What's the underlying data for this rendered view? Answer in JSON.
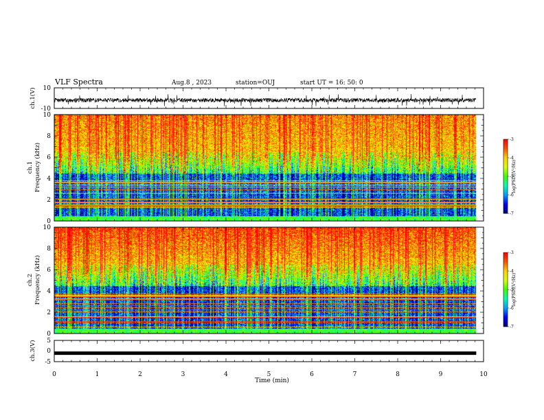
{
  "header": {
    "title": "VLF Spectra",
    "date": "Aug.8 , 2023",
    "station": "station=OUJ",
    "start": "start UT = 16: 50: 0"
  },
  "colors": {
    "colormap": [
      "#00007a",
      "#0000ff",
      "#00a0ff",
      "#00ffb0",
      "#40ff00",
      "#d8ff00",
      "#ffd000",
      "#ff5000",
      "#ff0000",
      "#ffffff"
    ],
    "waveform": "#000000"
  },
  "chart_data": [
    {
      "name": "ch1-waveform",
      "type": "line",
      "ylabel": "ch.1(V)",
      "ylim": [
        -10,
        10
      ],
      "yticks": [
        "10",
        "-10"
      ],
      "x_range_min": [
        0,
        10
      ],
      "description_values": "noisy signal roughly between -8 and 4 V, centered near -2 V",
      "mean": -2.0
    },
    {
      "name": "ch1-spectrogram",
      "type": "heatmap",
      "ylabel": "ch.1 Frequency (kHz)",
      "ylim": [
        0,
        10
      ],
      "yticks": [
        "0",
        "2",
        "4",
        "6",
        "8",
        "10"
      ],
      "colorbar": {
        "label": "log(PSD)(V²/Hz)",
        "range": [
          -7,
          -3
        ],
        "ticks": [
          "-3",
          "-4",
          "-5",
          "-6",
          "-7"
        ]
      }
    },
    {
      "name": "ch2-spectrogram",
      "type": "heatmap",
      "ylabel": "ch.2 Frequency (kHz)",
      "ylim": [
        0,
        10
      ],
      "yticks": [
        "0",
        "2",
        "4",
        "6",
        "8",
        "10"
      ],
      "colorbar": {
        "label": "log(PSD)(V²/Hz)",
        "range": [
          -7,
          -3
        ],
        "ticks": [
          "-3",
          "-4",
          "-5",
          "-6",
          "-7"
        ]
      }
    },
    {
      "name": "ch3-waveform",
      "type": "line",
      "ylabel": "ch.3(V)",
      "ylim": [
        -5,
        5
      ],
      "yticks": [
        "5",
        "0",
        "-5"
      ],
      "value": -1.0
    }
  ],
  "xaxis": {
    "label": "Time (min)",
    "range": [
      0,
      10
    ],
    "ticks": [
      "0",
      "1",
      "2",
      "3",
      "4",
      "5",
      "6",
      "7",
      "8",
      "9",
      "10"
    ],
    "data_end": 9.83
  }
}
